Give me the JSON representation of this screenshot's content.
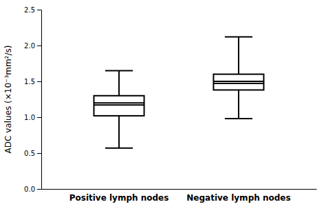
{
  "chart_data": {
    "type": "box",
    "categories": [
      "Positive lymph nodes",
      "Negative lymph nodes"
    ],
    "boxes": [
      {
        "whisker_low": 0.57,
        "q1": 1.02,
        "median": 1.17,
        "mean": 1.2,
        "q3": 1.3,
        "whisker_high": 1.65
      },
      {
        "whisker_low": 0.98,
        "q1": 1.38,
        "median": 1.47,
        "mean": 1.5,
        "q3": 1.6,
        "whisker_high": 2.12
      }
    ],
    "ylabel": "ADC values (×10⁻³mm²/s)",
    "ylim": [
      0.0,
      2.5
    ],
    "yticks": [
      {
        "value": 0,
        "label": "0.0"
      },
      0.5,
      {
        "value": 1,
        "label": "1.0"
      },
      1.5,
      {
        "value": 2,
        "label": "2.0"
      },
      2.5
    ],
    "color": "black"
  }
}
